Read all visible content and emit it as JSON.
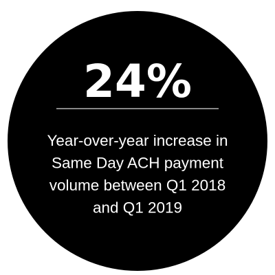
{
  "stat": {
    "value": "24%"
  },
  "description": {
    "lines": [
      "Year-over-year increase in",
      "Same Day ACH payment",
      "volume between Q1 2018",
      "and Q1 2019"
    ]
  }
}
